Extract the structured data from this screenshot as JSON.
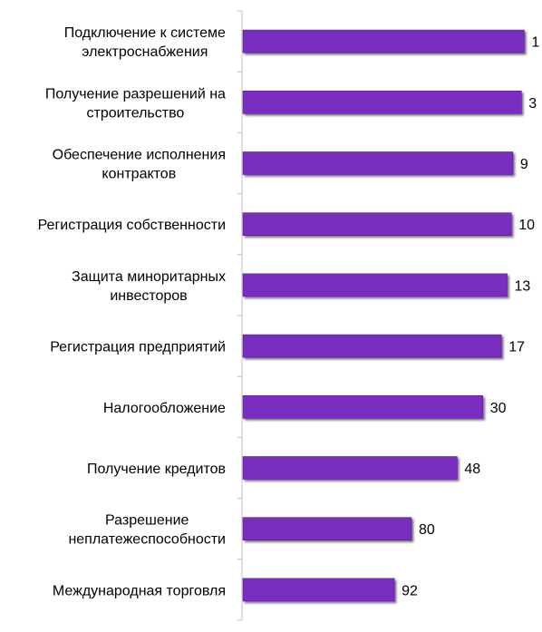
{
  "chart_data": {
    "type": "bar",
    "orientation": "horizontal",
    "categories": [
      [
        "Подключение к системе",
        "электроснабжения"
      ],
      [
        "Получение разрешений  на",
        "строительство"
      ],
      [
        "Обеспечение исполнения",
        "контрактов"
      ],
      [
        "Регистрация собственности"
      ],
      [
        "Защита миноритарных",
        "инвесторов"
      ],
      [
        "Регистрация предприятий"
      ],
      [
        "Налогообложение"
      ],
      [
        "Получение кредитов"
      ],
      [
        "Разрешение",
        "неплатежеспособности"
      ],
      [
        "Международная торговля"
      ]
    ],
    "values": [
      1,
      3,
      9,
      10,
      13,
      17,
      30,
      48,
      80,
      92
    ],
    "data_labels": [
      "1",
      "3",
      "9",
      "10",
      "13",
      "17",
      "30",
      "48",
      "80",
      "92"
    ],
    "title": "",
    "xlabel": "",
    "ylabel": "",
    "grid": false,
    "legend": "none",
    "bar_color": "#7A2FC0",
    "bar_shadow_color": "#555555",
    "axis_color": "#bfbfbf",
    "text_color": "#000000"
  }
}
